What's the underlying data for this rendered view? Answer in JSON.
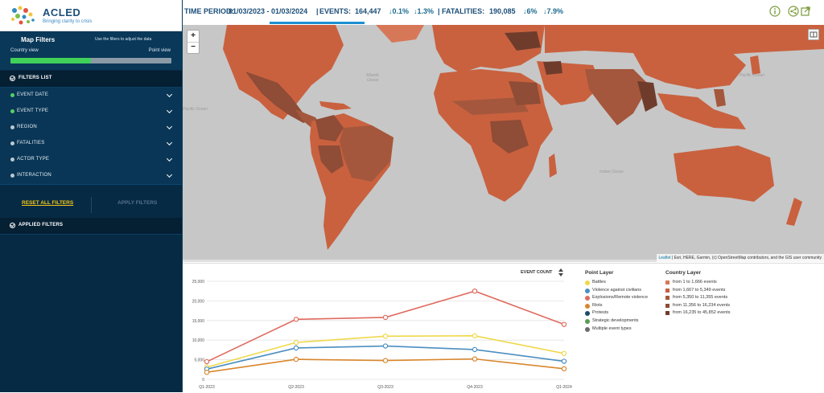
{
  "brand": {
    "name": "ACLED",
    "tagline": "Bringing clarity to crisis"
  },
  "sidebar": {
    "panel_title": "Map Filters",
    "panel_hint": "Use the filters to adjust the data",
    "country_view": "Country view",
    "point_view": "Point view",
    "view_slider_fraction": 0.5,
    "filters_list_label": "FILTERS LIST",
    "filters": [
      {
        "label": "EVENT DATE",
        "active": true
      },
      {
        "label": "EVENT TYPE",
        "active": true
      },
      {
        "label": "REGION",
        "active": false
      },
      {
        "label": "FATALITIES",
        "active": false
      },
      {
        "label": "ACTOR TYPE",
        "active": false
      },
      {
        "label": "INTERACTION",
        "active": false
      }
    ],
    "reset_label": "RESET ALL FILTERS",
    "apply_label": "APPLY FILTERS",
    "applied_filters_label": "APPLIED FILTERS"
  },
  "topbar": {
    "period_label": "TIME PERIOD:",
    "period_value": "01/03/2023 - 01/03/2024",
    "separator": "|",
    "events_label": "EVENTS:",
    "events_value": "164,447",
    "events_delta_1": "0.1%",
    "events_delta_2": "1.3%",
    "fatalities_label": "FATALITIES:",
    "fatalities_value": "190,085",
    "fatalities_delta_1": "6%",
    "fatalities_delta_2": "7.9%",
    "arrow": "↓"
  },
  "map": {
    "zoom_in": "+",
    "zoom_out": "−",
    "oceans": {
      "atlantic": "Atlantic\nOcean",
      "pacific_w": "Pacific Ocean",
      "pacific_e": "Pacific Ocean",
      "indian": "Indian Ocean"
    },
    "attribution_leaflet": "Leaflet",
    "attribution_text": " | Esri, HERE, Garmin, (c) OpenStreetMap contributors, and the GIS user community"
  },
  "chart": {
    "count_label": "EVENT COUNT"
  },
  "legend": {
    "point_title": "Point Layer",
    "point_items": [
      {
        "label": "Battles",
        "color": "#f0d84a"
      },
      {
        "label": "Violence against civilians",
        "color": "#4b8ec0"
      },
      {
        "label": "Explosions/Remote violence",
        "color": "#e06a5f"
      },
      {
        "label": "Riots",
        "color": "#d9862d"
      },
      {
        "label": "Protests",
        "color": "#1e4a66"
      },
      {
        "label": "Strategic developments",
        "color": "#5b9a56"
      },
      {
        "label": "Multiple event types",
        "color": "#6b6b6b"
      }
    ],
    "country_title": "Country Layer",
    "country_items": [
      {
        "label": "from 1 to 1,666 events",
        "color": "#d67858"
      },
      {
        "label": "from 1,667 to 5,349 events",
        "color": "#c4603f"
      },
      {
        "label": "from 5,350 to 11,355 events",
        "color": "#a4573c"
      },
      {
        "label": "from 11,356 to 16,234 events",
        "color": "#8f4c36"
      },
      {
        "label": "from 16,235 to 45,852 events",
        "color": "#6f3c2c"
      }
    ]
  },
  "chart_data": {
    "type": "line",
    "categories": [
      "Q1-2023",
      "Q2-2023",
      "Q3-2023",
      "Q4-2023",
      "Q1-2024"
    ],
    "ylim": [
      0,
      25000
    ],
    "yticks": [
      0,
      5000,
      10000,
      15000,
      20000,
      25000
    ],
    "ytick_labels": [
      "0",
      "5,000",
      "10,000",
      "15,000",
      "20,000",
      "25,000"
    ],
    "grid": true,
    "series": [
      {
        "name": "Explosions/Remote violence",
        "color": "#e06a5f",
        "values": [
          4500,
          15300,
          15800,
          22500,
          14000
        ]
      },
      {
        "name": "Battles",
        "color": "#f0d84a",
        "values": [
          3100,
          9400,
          11000,
          11100,
          6600
        ]
      },
      {
        "name": "Violence against civilians",
        "color": "#4b8ec0",
        "values": [
          2600,
          8000,
          8500,
          7600,
          4600
        ]
      },
      {
        "name": "Riots",
        "color": "#d9862d",
        "values": [
          1800,
          5100,
          4800,
          5200,
          2700
        ]
      }
    ]
  }
}
